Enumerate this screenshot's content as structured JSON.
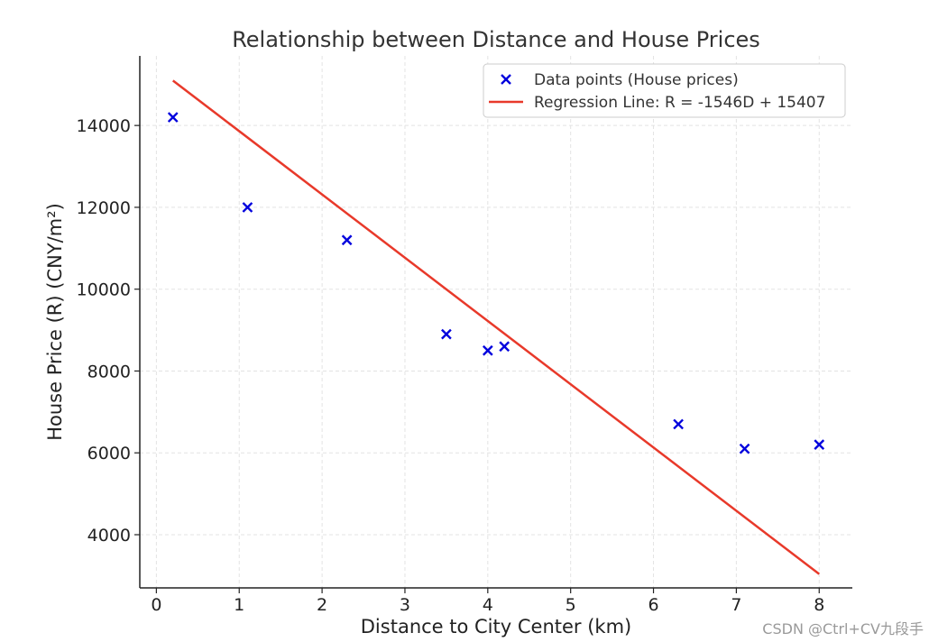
{
  "chart_data": {
    "type": "scatter",
    "title": "Relationship between Distance and House Prices",
    "xlabel": "Distance to City Center (km)",
    "ylabel": "House Price (R) (CNY/m²)",
    "xlim": [
      -0.2,
      8.4
    ],
    "ylim": [
      2700,
      15700
    ],
    "xticks": [
      0,
      1,
      2,
      3,
      4,
      5,
      6,
      7,
      8
    ],
    "yticks": [
      4000,
      6000,
      8000,
      10000,
      12000,
      14000
    ],
    "grid": true,
    "legend_position": "top-right",
    "series": [
      {
        "name": "Data points (House prices)",
        "kind": "scatter",
        "marker": "x",
        "color": "#0000dd",
        "x": [
          0.2,
          1.1,
          2.3,
          3.5,
          4.0,
          4.2,
          6.3,
          7.1,
          8.0
        ],
        "y": [
          14200,
          12000,
          11200,
          8900,
          8500,
          8600,
          6700,
          6100,
          6200
        ]
      },
      {
        "name": "Regression Line: R = -1546D + 15407",
        "kind": "line",
        "color": "#e8392a",
        "slope": -1546,
        "intercept": 15407,
        "x": [
          0.2,
          8.0
        ]
      }
    ]
  },
  "watermark": "CSDN @Ctrl+CV九段手"
}
